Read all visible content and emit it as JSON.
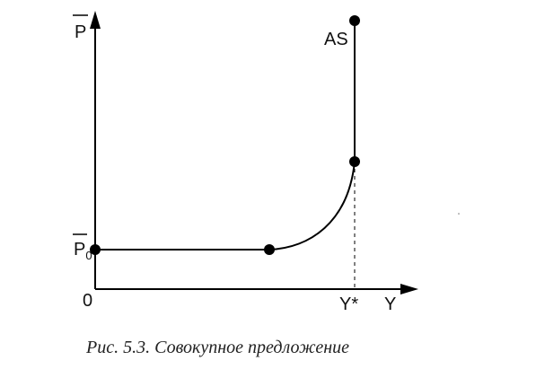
{
  "diagram": {
    "axes": {
      "y_label": "P",
      "x_label": "Y",
      "origin_label": "0"
    },
    "level_label": "P",
    "level_subscript": "0",
    "curve_label": "AS",
    "full_employment_label": "Y*",
    "caption": "Рис. 5.3. Совокупное предложение"
  },
  "colors": {
    "ink": "#000000",
    "caption": "#222222"
  }
}
